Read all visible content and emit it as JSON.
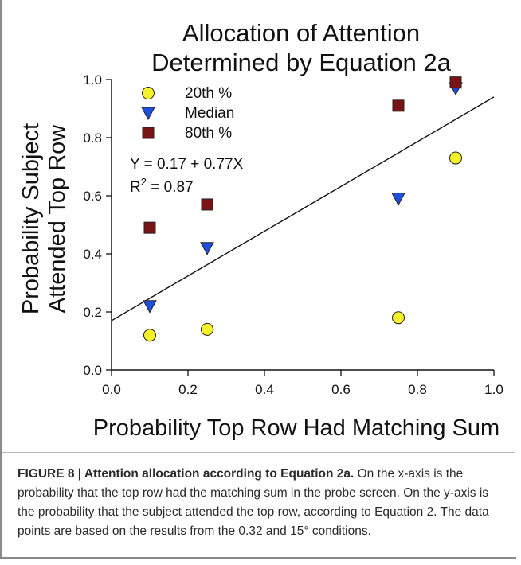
{
  "chart_data": {
    "type": "scatter",
    "title_lines": [
      "Allocation of Attention",
      "Determined by Equation 2a"
    ],
    "xlabel": "Probability Top Row Had Matching Sum",
    "ylabel_lines": [
      "Probability Subject",
      "Attended Top Row"
    ],
    "xlim": [
      0.0,
      1.0
    ],
    "ylim": [
      0.0,
      1.0
    ],
    "x_ticks": [
      "0.0",
      "0.2",
      "0.4",
      "0.6",
      "0.8",
      "1.0"
    ],
    "y_ticks": [
      "0.0",
      "0.2",
      "0.4",
      "0.6",
      "0.8",
      "1.0"
    ],
    "grid": false,
    "legend_position": "top-left",
    "series": [
      {
        "name": "20th %",
        "marker": "circle",
        "color": "#f5f22a",
        "x": [
          0.1,
          0.25,
          0.75,
          0.9
        ],
        "y": [
          0.12,
          0.14,
          0.18,
          0.73
        ]
      },
      {
        "name": "Median",
        "marker": "triangle-down",
        "color": "#1f4fe0",
        "x": [
          0.1,
          0.25,
          0.75,
          0.9
        ],
        "y": [
          0.22,
          0.42,
          0.59,
          0.97
        ]
      },
      {
        "name": "80th %",
        "marker": "square",
        "color": "#7a1414",
        "x": [
          0.1,
          0.25,
          0.75,
          0.9
        ],
        "y": [
          0.49,
          0.57,
          0.91,
          0.99
        ]
      }
    ],
    "fit_line": {
      "intercept": 0.17,
      "slope": 0.77
    },
    "annotations": {
      "equation": "Y = 0.17 + 0.77X",
      "r2_prefix": "R",
      "r2_sup": "2",
      "r2_suffix": " = 0.87"
    }
  },
  "caption": {
    "lead": "FIGURE 8 | Attention allocation according to Equation 2a.",
    "text": " On the x-axis is the probability that the top row had the matching sum in the probe screen. On the y-axis is the probability that the subject attended the top row, according to Equation 2. The data points are based on the results from the 0.32 and 15° conditions."
  }
}
